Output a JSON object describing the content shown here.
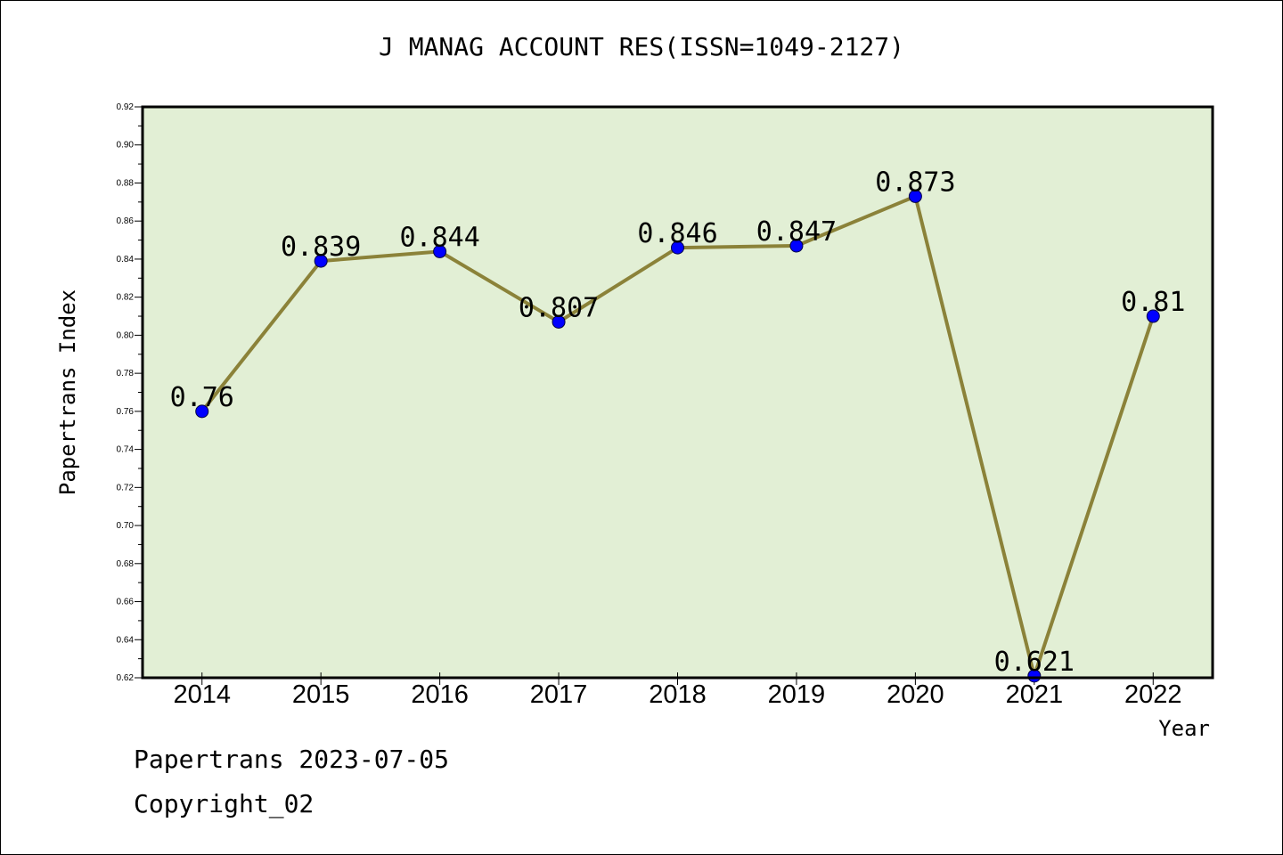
{
  "title": "J MANAG ACCOUNT RES(ISSN=1049-2127)",
  "footer": {
    "line1": "Papertrans 2023-07-05",
    "line2": "Copyright_02"
  },
  "colors": {
    "plot_background": "#e2efd5",
    "line": "#8b8239",
    "marker": "#0000ff"
  },
  "chart_data": {
    "type": "line",
    "title": "J MANAG ACCOUNT RES(ISSN=1049-2127)",
    "xlabel": "Year",
    "ylabel": "Papertrans Index",
    "categories": [
      "2014",
      "2015",
      "2016",
      "2017",
      "2018",
      "2019",
      "2020",
      "2021",
      "2022"
    ],
    "values": [
      0.76,
      0.839,
      0.844,
      0.807,
      0.846,
      0.847,
      0.873,
      0.621,
      0.81
    ],
    "value_labels": [
      "0.76",
      "0.839",
      "0.844",
      "0.807",
      "0.846",
      "0.847",
      "0.873",
      "0.621",
      "0.81"
    ],
    "ylim": [
      0.62,
      0.92
    ],
    "yticks": [
      "0.62",
      "0.64",
      "0.66",
      "0.68",
      "0.70",
      "0.72",
      "0.74",
      "0.76",
      "0.78",
      "0.80",
      "0.82",
      "0.84",
      "0.86",
      "0.88",
      "0.90",
      "0.92"
    ],
    "grid": false,
    "legend": "none"
  }
}
